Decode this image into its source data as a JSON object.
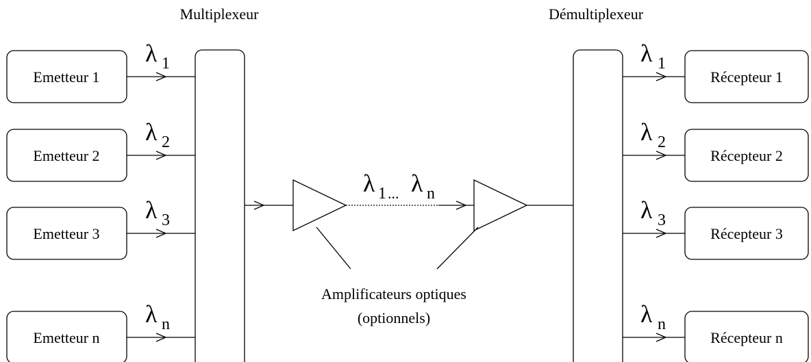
{
  "multiplexer": {
    "label": "Multiplexeur"
  },
  "demultiplexer": {
    "label": "Démultiplexeur"
  },
  "symbol": "λ",
  "emitters": [
    {
      "label": "Emetteur 1",
      "subscript": "1"
    },
    {
      "label": "Emetteur 2",
      "subscript": "2"
    },
    {
      "label": "Emetteur 3",
      "subscript": "3"
    },
    {
      "label": "Emetteur n",
      "subscript": "n"
    }
  ],
  "receivers": [
    {
      "label": "Récepteur 1",
      "subscript": "1"
    },
    {
      "label": "Récepteur 2",
      "subscript": "2"
    },
    {
      "label": "Récepteur 3",
      "subscript": "3"
    },
    {
      "label": "Récepteur n",
      "subscript": "n"
    }
  ],
  "link": {
    "from_subscript": "1",
    "separator": "...",
    "to_subscript": "n"
  },
  "amplifiers": {
    "label": "Amplificateurs optiques",
    "note": "(optionnels)"
  }
}
